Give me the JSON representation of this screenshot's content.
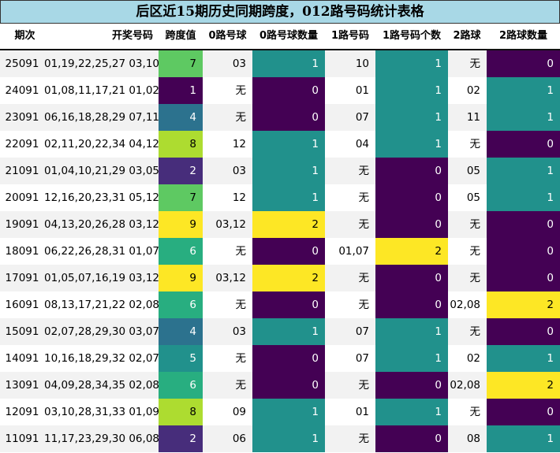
{
  "title": "后区近15期历史同期跨度，012路号码统计表格",
  "headers": [
    "期次",
    "开奖号码",
    "跨度值",
    "0路号球",
    "0路号球数量",
    "1路号码",
    "1路号码个数",
    "2路球",
    "2路球数量"
  ],
  "colors": {
    "span": {
      "1": "#440154",
      "2": "#472d7b",
      "4": "#2c728e",
      "5": "#21918c",
      "6": "#28ae80",
      "7": "#5ec962",
      "8": "#addc30",
      "9": "#fde725"
    },
    "count": {
      "0": "#440154",
      "1": "#21918c",
      "2": "#fde725"
    },
    "stripe_odd": "#f2f2f2",
    "stripe_even": "#ffffff",
    "title_bg": "#a8d8e6"
  },
  "chart_data": {
    "type": "table",
    "columns": [
      "期次",
      "开奖号码",
      "跨度值",
      "0路号球",
      "0路号球数量",
      "1路号码",
      "1路号码个数",
      "2路球",
      "2路球数量"
    ],
    "rows": [
      {
        "period": "25091",
        "numbers": "01,19,22,25,27 03,10",
        "span": 7,
        "r0": "03",
        "r0_count": 1,
        "r1": "10",
        "r1_count": 1,
        "r2": "无",
        "r2_count": 0
      },
      {
        "period": "24091",
        "numbers": "01,08,11,17,21 01,02",
        "span": 1,
        "r0": "无",
        "r0_count": 0,
        "r1": "01",
        "r1_count": 1,
        "r2": "02",
        "r2_count": 1
      },
      {
        "period": "23091",
        "numbers": "06,16,18,28,29 07,11",
        "span": 4,
        "r0": "无",
        "r0_count": 0,
        "r1": "07",
        "r1_count": 1,
        "r2": "11",
        "r2_count": 1
      },
      {
        "period": "22091",
        "numbers": "02,11,20,22,34 04,12",
        "span": 8,
        "r0": "12",
        "r0_count": 1,
        "r1": "04",
        "r1_count": 1,
        "r2": "无",
        "r2_count": 0
      },
      {
        "period": "21091",
        "numbers": "01,04,10,21,29 03,05",
        "span": 2,
        "r0": "03",
        "r0_count": 1,
        "r1": "无",
        "r1_count": 0,
        "r2": "05",
        "r2_count": 1
      },
      {
        "period": "20091",
        "numbers": "12,16,20,23,31 05,12",
        "span": 7,
        "r0": "12",
        "r0_count": 1,
        "r1": "无",
        "r1_count": 0,
        "r2": "05",
        "r2_count": 1
      },
      {
        "period": "19091",
        "numbers": "04,13,20,26,28 03,12",
        "span": 9,
        "r0": "03,12",
        "r0_count": 2,
        "r1": "无",
        "r1_count": 0,
        "r2": "无",
        "r2_count": 0
      },
      {
        "period": "18091",
        "numbers": "06,22,26,28,31 01,07",
        "span": 6,
        "r0": "无",
        "r0_count": 0,
        "r1": "01,07",
        "r1_count": 2,
        "r2": "无",
        "r2_count": 0
      },
      {
        "period": "17091",
        "numbers": "01,05,07,16,19 03,12",
        "span": 9,
        "r0": "03,12",
        "r0_count": 2,
        "r1": "无",
        "r1_count": 0,
        "r2": "无",
        "r2_count": 0
      },
      {
        "period": "16091",
        "numbers": "08,13,17,21,22 02,08",
        "span": 6,
        "r0": "无",
        "r0_count": 0,
        "r1": "无",
        "r1_count": 0,
        "r2": "02,08",
        "r2_count": 2
      },
      {
        "period": "15091",
        "numbers": "02,07,28,29,30 03,07",
        "span": 4,
        "r0": "03",
        "r0_count": 1,
        "r1": "07",
        "r1_count": 1,
        "r2": "无",
        "r2_count": 0
      },
      {
        "period": "14091",
        "numbers": "10,16,18,29,32 02,07",
        "span": 5,
        "r0": "无",
        "r0_count": 0,
        "r1": "07",
        "r1_count": 1,
        "r2": "02",
        "r2_count": 1
      },
      {
        "period": "13091",
        "numbers": "04,09,28,34,35 02,08",
        "span": 6,
        "r0": "无",
        "r0_count": 0,
        "r1": "无",
        "r1_count": 0,
        "r2": "02,08",
        "r2_count": 2
      },
      {
        "period": "12091",
        "numbers": "03,10,28,31,33 01,09",
        "span": 8,
        "r0": "09",
        "r0_count": 1,
        "r1": "01",
        "r1_count": 1,
        "r2": "无",
        "r2_count": 0
      },
      {
        "period": "11091",
        "numbers": "11,17,23,29,30 06,08",
        "span": 2,
        "r0": "06",
        "r0_count": 1,
        "r1": "无",
        "r1_count": 0,
        "r2": "08",
        "r2_count": 1
      }
    ]
  }
}
